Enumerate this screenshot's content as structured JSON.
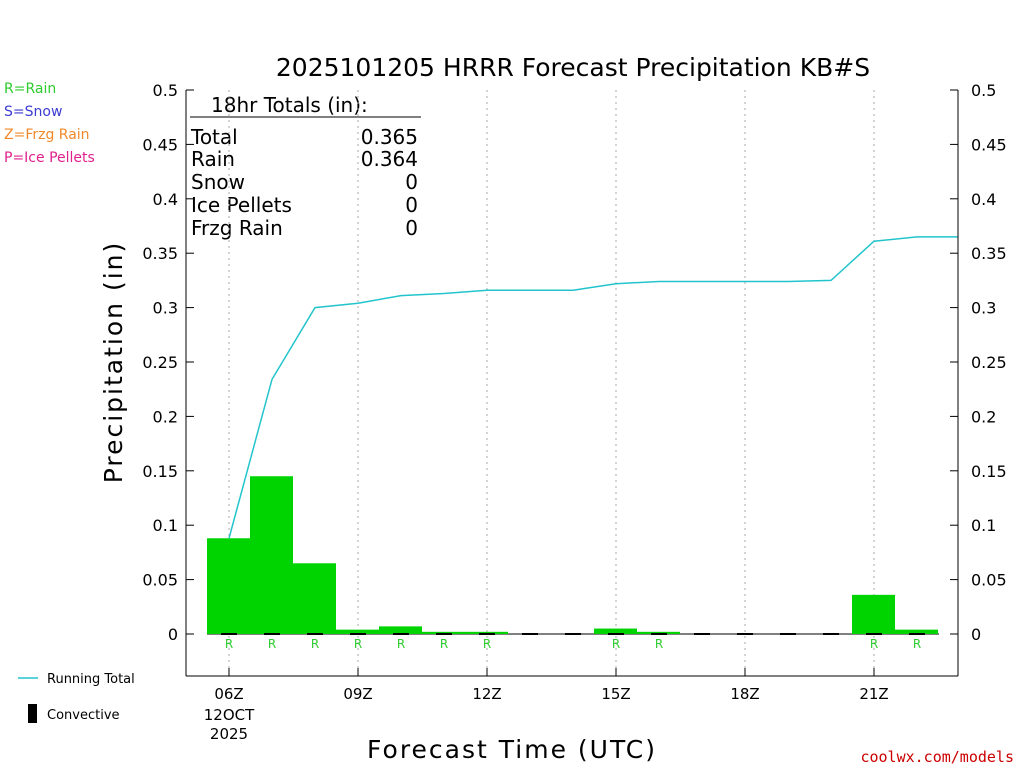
{
  "chart_data": {
    "type": "bar",
    "title": "2025101205 HRRR Forecast Precipitation KB#S",
    "xlabel": "Forecast Time (UTC)",
    "ylabel": "Precipitation (in)",
    "ylim": [
      0,
      0.5
    ],
    "yticks": [
      "0",
      "0.05",
      "0.1",
      "0.15",
      "0.2",
      "0.25",
      "0.3",
      "0.35",
      "0.4",
      "0.45",
      "0.5"
    ],
    "xticks": [
      {
        "hour": 6,
        "label": "06Z",
        "sub1": "12OCT",
        "sub2": "2025"
      },
      {
        "hour": 9,
        "label": "09Z"
      },
      {
        "hour": 12,
        "label": "12Z"
      },
      {
        "hour": 15,
        "label": "15Z"
      },
      {
        "hour": 18,
        "label": "18Z"
      },
      {
        "hour": 21,
        "label": "21Z"
      }
    ],
    "x_hours": [
      6,
      7,
      8,
      9,
      10,
      11,
      12,
      13,
      14,
      15,
      16,
      17,
      18,
      19,
      20,
      21,
      22
    ],
    "hourly_rain": [
      0.088,
      0.145,
      0.065,
      0.004,
      0.007,
      0.002,
      0.002,
      0,
      0,
      0.005,
      0.002,
      0,
      0,
      0,
      0,
      0.036,
      0.004
    ],
    "ptype_markers": [
      "R",
      "R",
      "R",
      "R",
      "R",
      "R",
      "R",
      "",
      "",
      "R",
      "R",
      "",
      "",
      "",
      "",
      "R",
      "R"
    ],
    "running_total": {
      "hours": [
        6,
        7,
        8,
        9,
        10,
        11,
        12,
        13,
        14,
        15,
        16,
        17,
        18,
        19,
        20,
        21,
        22,
        23
      ],
      "values": [
        0.088,
        0.234,
        0.3,
        0.304,
        0.311,
        0.313,
        0.316,
        0.316,
        0.316,
        0.322,
        0.324,
        0.324,
        0.324,
        0.324,
        0.325,
        0.361,
        0.365,
        0.365
      ]
    },
    "colors": {
      "rain": "#00d400",
      "running_total": "#22c4cc",
      "snow": "#3b3bd4",
      "frzg_rain": "#f0882a",
      "ice_pellets": "#e0208c",
      "grid": "#aaaaaa"
    },
    "grid": true
  },
  "totals_box": {
    "heading": "18hr Totals (in):",
    "rows": [
      {
        "label": "Total",
        "value": "0.365"
      },
      {
        "label": "Rain",
        "value": "0.364"
      },
      {
        "label": "Snow",
        "value": "0"
      },
      {
        "label": "Ice Pellets",
        "value": "0"
      },
      {
        "label": "Frzg Rain",
        "value": "0"
      }
    ]
  },
  "ptype_key": [
    "R=Rain",
    "S=Snow",
    "Z=Frzg Rain",
    "P=Ice Pellets"
  ],
  "legend": {
    "running_total": "Running Total",
    "convective": "Convective"
  },
  "credit": "coolwx.com/models"
}
